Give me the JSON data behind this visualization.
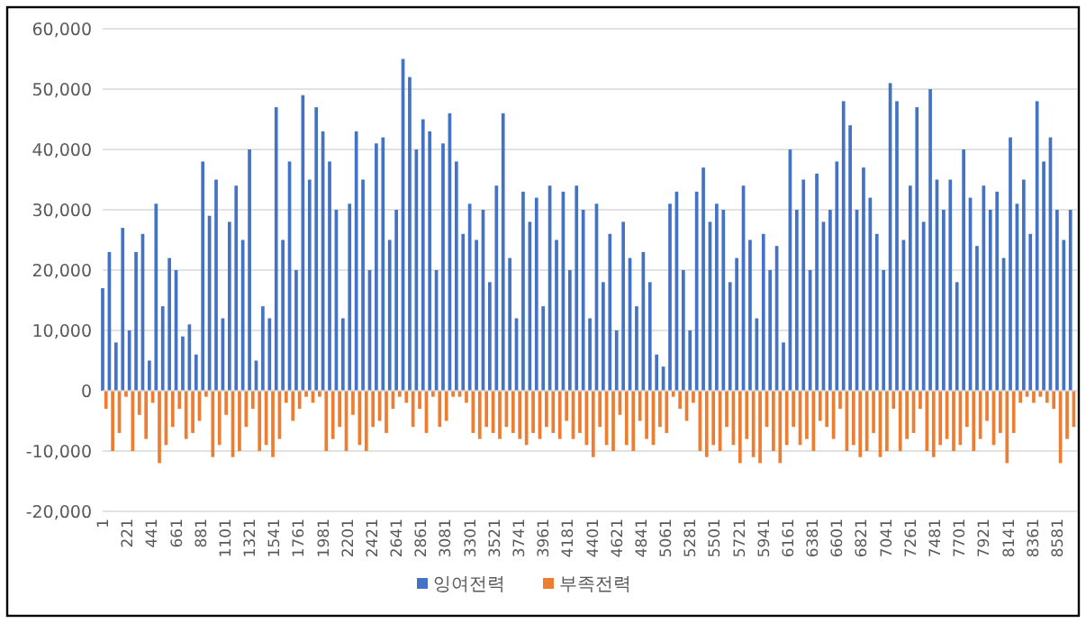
{
  "chart_data": {
    "type": "bar",
    "xlim": [
      1,
      8760
    ],
    "xticks": [
      1,
      221,
      441,
      661,
      881,
      1101,
      1321,
      1541,
      1761,
      1981,
      2201,
      2421,
      2641,
      2861,
      3081,
      3301,
      3521,
      3741,
      3961,
      4181,
      4401,
      4621,
      4841,
      5061,
      5281,
      5501,
      5721,
      5941,
      6161,
      6381,
      6601,
      6821,
      7041,
      7261,
      7481,
      7701,
      7921,
      8141,
      8361,
      8581
    ],
    "ylim": [
      -20000,
      60000
    ],
    "yticks": [
      {
        "value": -20000,
        "label": "-20,000"
      },
      {
        "value": -10000,
        "label": "-10,000"
      },
      0,
      {
        "value": 10000,
        "label": "10,000"
      },
      {
        "value": 20000,
        "label": "20,000"
      },
      {
        "value": 30000,
        "label": "30,000"
      },
      {
        "value": 40000,
        "label": "40,000"
      },
      {
        "value": 50000,
        "label": "50,000"
      },
      {
        "value": 60000,
        "label": "60,000"
      }
    ],
    "grid": "y",
    "legend": "bottom",
    "series": [
      {
        "name": "잉여전력",
        "color": "#4472c4",
        "x": [
          1,
          61,
          121,
          181,
          241,
          301,
          361,
          421,
          481,
          541,
          601,
          661,
          721,
          781,
          841,
          901,
          961,
          1021,
          1081,
          1141,
          1201,
          1261,
          1321,
          1381,
          1441,
          1501,
          1561,
          1621,
          1681,
          1741,
          1801,
          1861,
          1921,
          1981,
          2041,
          2101,
          2161,
          2221,
          2281,
          2341,
          2401,
          2461,
          2521,
          2581,
          2641,
          2701,
          2761,
          2821,
          2881,
          2941,
          3001,
          3061,
          3121,
          3181,
          3241,
          3301,
          3361,
          3421,
          3481,
          3541,
          3601,
          3661,
          3721,
          3781,
          3841,
          3901,
          3961,
          4021,
          4081,
          4141,
          4201,
          4261,
          4321,
          4381,
          4441,
          4501,
          4561,
          4621,
          4681,
          4741,
          4801,
          4861,
          4921,
          4981,
          5041,
          5101,
          5161,
          5221,
          5281,
          5341,
          5401,
          5461,
          5521,
          5581,
          5641,
          5701,
          5761,
          5821,
          5881,
          5941,
          6001,
          6061,
          6121,
          6181,
          6241,
          6301,
          6361,
          6421,
          6481,
          6541,
          6601,
          6661,
          6721,
          6781,
          6841,
          6901,
          6961,
          7021,
          7081,
          7141,
          7201,
          7261,
          7321,
          7381,
          7441,
          7501,
          7561,
          7621,
          7681,
          7741,
          7801,
          7861,
          7921,
          7981,
          8041,
          8101,
          8161,
          8221,
          8281,
          8341,
          8401,
          8461,
          8521,
          8581,
          8641,
          8701
        ],
        "values": [
          17000,
          23000,
          8000,
          27000,
          10000,
          23000,
          26000,
          5000,
          31000,
          14000,
          22000,
          20000,
          9000,
          11000,
          6000,
          38000,
          29000,
          35000,
          12000,
          28000,
          34000,
          25000,
          40000,
          5000,
          14000,
          12000,
          47000,
          25000,
          38000,
          20000,
          49000,
          35000,
          47000,
          43000,
          38000,
          30000,
          12000,
          31000,
          43000,
          35000,
          20000,
          41000,
          42000,
          25000,
          30000,
          55000,
          52000,
          40000,
          45000,
          43000,
          20000,
          41000,
          46000,
          38000,
          26000,
          31000,
          25000,
          30000,
          18000,
          34000,
          46000,
          22000,
          12000,
          33000,
          28000,
          32000,
          14000,
          34000,
          25000,
          33000,
          20000,
          34000,
          30000,
          12000,
          31000,
          18000,
          26000,
          10000,
          28000,
          22000,
          14000,
          23000,
          18000,
          6000,
          4000,
          31000,
          33000,
          20000,
          10000,
          33000,
          37000,
          28000,
          31000,
          30000,
          18000,
          22000,
          34000,
          25000,
          12000,
          26000,
          20000,
          24000,
          8000,
          40000,
          30000,
          35000,
          20000,
          36000,
          28000,
          30000,
          38000,
          48000,
          44000,
          30000,
          37000,
          32000,
          26000,
          20000,
          51000,
          48000,
          25000,
          34000,
          47000,
          28000,
          50000,
          35000,
          30000,
          35000,
          18000,
          40000,
          32000,
          24000,
          34000,
          30000,
          33000,
          22000,
          42000,
          31000,
          35000,
          26000,
          48000,
          38000,
          42000,
          30000,
          25000,
          30000
        ]
      },
      {
        "name": "부족전력",
        "color": "#ed7d31",
        "x": [
          31,
          91,
          151,
          211,
          271,
          331,
          391,
          451,
          511,
          571,
          631,
          691,
          751,
          811,
          871,
          931,
          991,
          1051,
          1111,
          1171,
          1231,
          1291,
          1351,
          1411,
          1471,
          1531,
          1591,
          1651,
          1711,
          1771,
          1831,
          1891,
          1951,
          2011,
          2071,
          2131,
          2191,
          2251,
          2311,
          2371,
          2431,
          2491,
          2551,
          2611,
          2671,
          2731,
          2791,
          2851,
          2911,
          2971,
          3031,
          3091,
          3151,
          3211,
          3271,
          3331,
          3391,
          3451,
          3511,
          3571,
          3631,
          3691,
          3751,
          3811,
          3871,
          3931,
          3991,
          4051,
          4111,
          4171,
          4231,
          4291,
          4351,
          4411,
          4471,
          4531,
          4591,
          4651,
          4711,
          4771,
          4831,
          4891,
          4951,
          5011,
          5071,
          5131,
          5191,
          5251,
          5311,
          5371,
          5431,
          5491,
          5551,
          5611,
          5671,
          5731,
          5791,
          5851,
          5911,
          5971,
          6031,
          6091,
          6151,
          6211,
          6271,
          6331,
          6391,
          6451,
          6511,
          6571,
          6631,
          6691,
          6751,
          6811,
          6871,
          6931,
          6991,
          7051,
          7111,
          7171,
          7231,
          7291,
          7351,
          7411,
          7471,
          7531,
          7591,
          7651,
          7711,
          7771,
          7831,
          7891,
          7951,
          8011,
          8071,
          8131,
          8191,
          8251,
          8311,
          8371,
          8431,
          8491,
          8551,
          8611,
          8671,
          8731
        ],
        "values": [
          -3000,
          -10000,
          -7000,
          -1000,
          -10000,
          -4000,
          -8000,
          -2000,
          -12000,
          -9000,
          -6000,
          -3000,
          -8000,
          -7000,
          -5000,
          -1000,
          -11000,
          -9000,
          -4000,
          -11000,
          -10000,
          -6000,
          -3000,
          -10000,
          -9000,
          -11000,
          -8000,
          -2000,
          -5000,
          -3000,
          -1000,
          -2000,
          -1000,
          -10000,
          -8000,
          -6000,
          -10000,
          -4000,
          -9000,
          -10000,
          -6000,
          -5000,
          -7000,
          -3000,
          -1000,
          -2000,
          -6000,
          -3000,
          -7000,
          -1000,
          -6000,
          -5000,
          -1000,
          -1000,
          -2000,
          -7000,
          -8000,
          -6000,
          -7000,
          -8000,
          -6000,
          -7000,
          -8000,
          -9000,
          -7000,
          -8000,
          -6000,
          -7000,
          -8000,
          -5000,
          -8000,
          -7000,
          -9000,
          -11000,
          -6000,
          -9000,
          -10000,
          -4000,
          -9000,
          -10000,
          -5000,
          -8000,
          -9000,
          -6000,
          -7000,
          -1000,
          -3000,
          -5000,
          -2000,
          -10000,
          -11000,
          -9000,
          -10000,
          -6000,
          -9000,
          -12000,
          -8000,
          -11000,
          -12000,
          -6000,
          -10000,
          -12000,
          -9000,
          -6000,
          -9000,
          -8000,
          -10000,
          -5000,
          -6000,
          -8000,
          -3000,
          -10000,
          -9000,
          -11000,
          -10000,
          -7000,
          -11000,
          -10000,
          -3000,
          -10000,
          -8000,
          -7000,
          -3000,
          -10000,
          -11000,
          -9000,
          -8000,
          -10000,
          -9000,
          -6000,
          -10000,
          -8000,
          -5000,
          -9000,
          -7000,
          -12000,
          -7000,
          -2000,
          -1000,
          -2000,
          -1000,
          -2000,
          -3000,
          -12000,
          -8000,
          -6000
        ]
      }
    ]
  }
}
